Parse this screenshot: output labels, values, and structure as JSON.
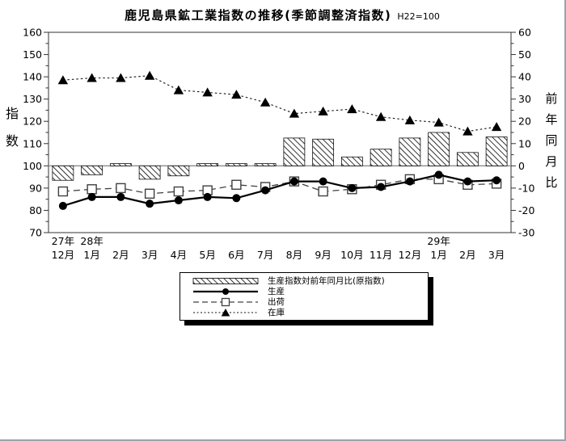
{
  "title": "鹿児島県鉱工業指数の推移(季節調整済指数)",
  "title_note": "H22=100",
  "left_axis": {
    "title": "指数",
    "min": 70,
    "max": 160,
    "step": 10
  },
  "right_axis": {
    "title": "前年同月比",
    "min": -30,
    "max": 60,
    "step": 10
  },
  "x_axis": {
    "months": [
      "12月",
      "1月",
      "2月",
      "3月",
      "4月",
      "5月",
      "6月",
      "7月",
      "8月",
      "9月",
      "10月",
      "11月",
      "12月",
      "1月",
      "2月",
      "3月"
    ],
    "year_labels": [
      {
        "index": 0,
        "text": "27年"
      },
      {
        "index": 1,
        "text": "28年"
      },
      {
        "index": 13,
        "text": "29年"
      }
    ]
  },
  "legend": {
    "items": [
      {
        "type": "bar",
        "label": "生産指数対前年同月比(原指数)"
      },
      {
        "type": "line-circle",
        "label": "生産"
      },
      {
        "type": "line-square",
        "label": "出荷"
      },
      {
        "type": "line-triangle",
        "label": "在庫"
      }
    ]
  },
  "colors": {
    "hatch": "#000000",
    "production_line": "#000000",
    "shipments_line": "#404040",
    "inventory_line": "#111111",
    "zero_line": "#8c8c8c",
    "axis": "#333333"
  },
  "chart_data": {
    "type": "bar+line combo",
    "title": "鹿児島県鉱工業指数の推移(季節調整済指数) H22=100",
    "categories": [
      "27年12月",
      "28年1月",
      "28年2月",
      "28年3月",
      "28年4月",
      "28年5月",
      "28年6月",
      "28年7月",
      "28年8月",
      "28年9月",
      "28年10月",
      "28年11月",
      "28年12月",
      "29年1月",
      "29年2月",
      "29年3月"
    ],
    "left_axis_label": "指数",
    "right_axis_label": "前年同月比",
    "left_ylim": [
      70,
      160
    ],
    "right_ylim": [
      -30,
      60
    ],
    "grid": false,
    "legend_position": "bottom",
    "series": [
      {
        "name": "生産指数対前年同月比(原指数)",
        "type": "bar",
        "axis": "right",
        "values": [
          -6.5,
          -4,
          1,
          -6,
          -4.5,
          1,
          1,
          1,
          12.5,
          12,
          4,
          7.5,
          12.5,
          15,
          6,
          13
        ]
      },
      {
        "name": "生産",
        "type": "line",
        "marker": "filled-circle",
        "axis": "left",
        "values": [
          82,
          86,
          86,
          83,
          84.5,
          86,
          85.5,
          89,
          93,
          93,
          90,
          90.5,
          93,
          96,
          93,
          93.5
        ]
      },
      {
        "name": "出荷",
        "type": "line",
        "marker": "open-square",
        "axis": "left",
        "values": [
          88.5,
          89.5,
          90,
          87.5,
          88.5,
          89,
          91.5,
          90.5,
          93,
          88.5,
          89.5,
          91.5,
          94,
          94,
          91.5,
          92
        ]
      },
      {
        "name": "在庫",
        "type": "line",
        "marker": "filled-triangle",
        "axis": "left",
        "values": [
          138.5,
          139.5,
          139.5,
          140.5,
          134,
          133,
          132,
          128.5,
          123.5,
          124.5,
          125.5,
          122,
          120.5,
          119.5,
          115.5,
          117.5
        ]
      }
    ]
  }
}
